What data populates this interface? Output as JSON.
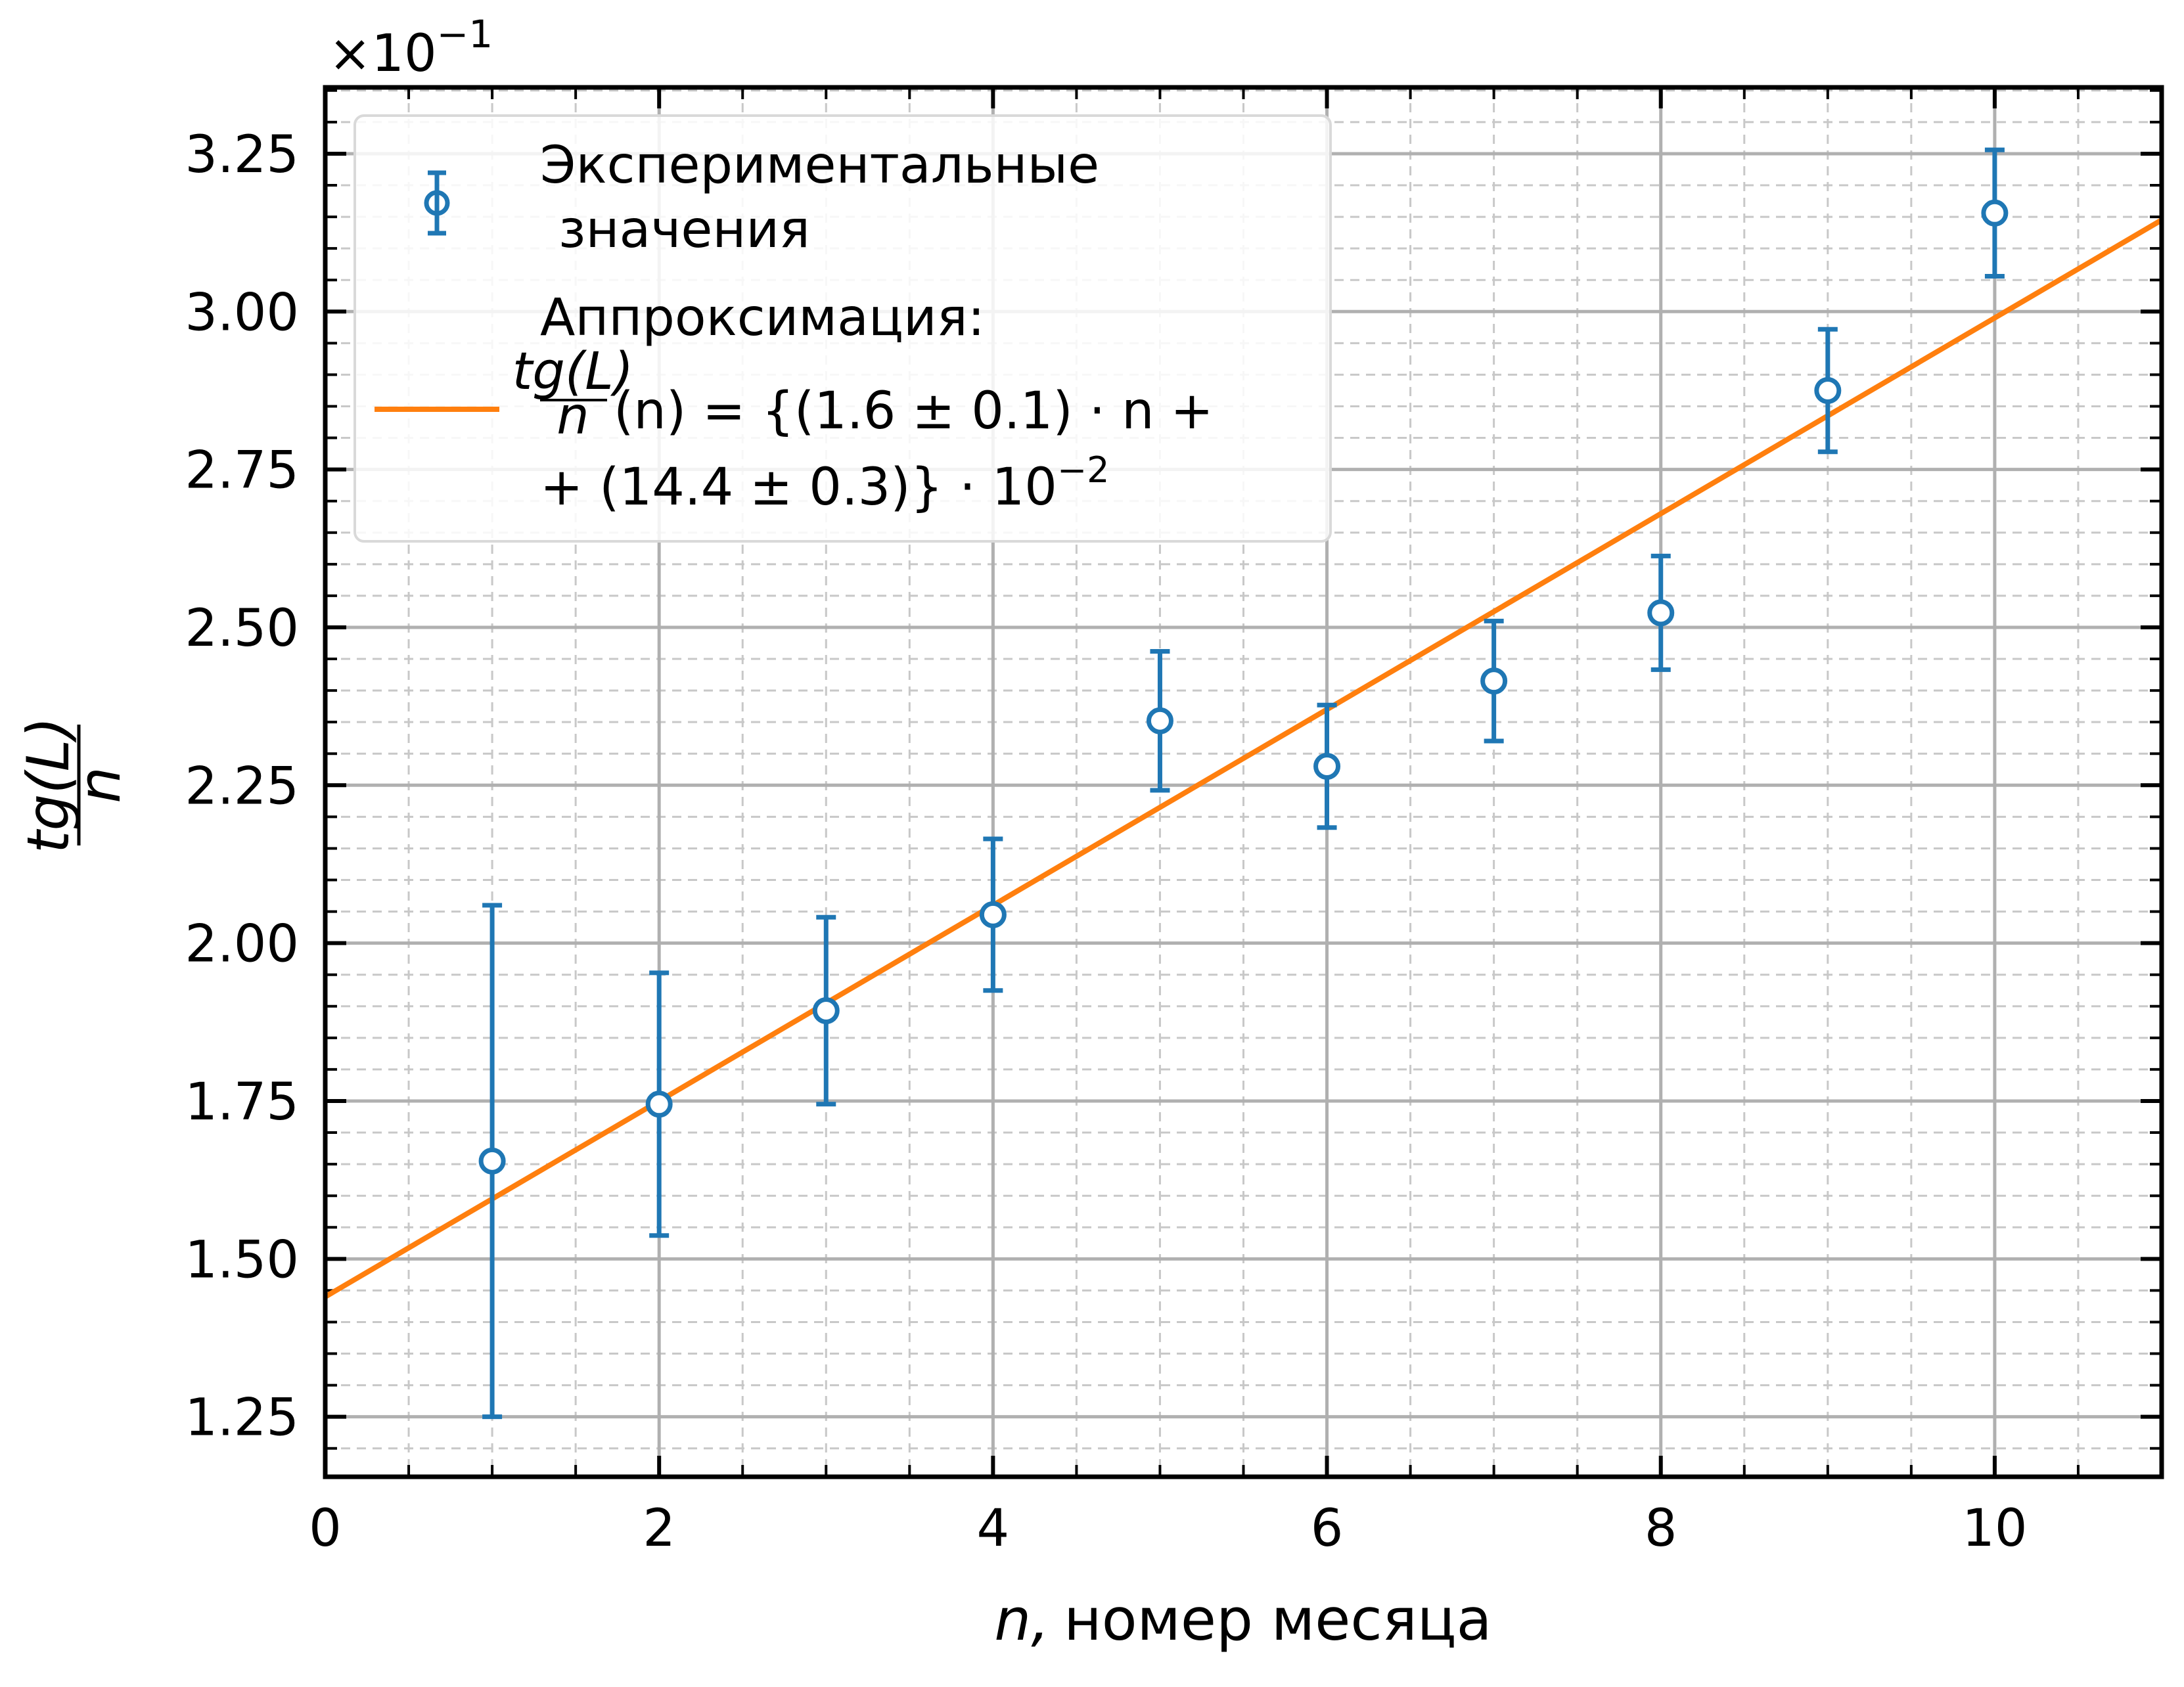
{
  "chart_data": {
    "type": "scatter",
    "xlabel_var": "n,",
    "xlabel_text": "номер месяца",
    "ylabel_num": "tg(L)",
    "ylabel_den": "n",
    "offset_text": "×10",
    "offset_exp": "−1",
    "xlim": [
      0,
      11
    ],
    "ylim": [
      1.155,
      3.355
    ],
    "x_major_ticks": [
      0,
      2,
      4,
      6,
      8,
      10
    ],
    "x_tick_labels": [
      "0",
      "2",
      "4",
      "6",
      "8",
      "10"
    ],
    "y_major_ticks": [
      1.25,
      1.5,
      1.75,
      2.0,
      2.25,
      2.5,
      2.75,
      3.0,
      3.25
    ],
    "y_tick_labels": [
      "1.25",
      "1.50",
      "1.75",
      "2.00",
      "2.25",
      "2.50",
      "2.75",
      "3.00",
      "3.25"
    ],
    "grid": true,
    "legend_position": "upper-left",
    "series": [
      {
        "name": "Экспериментальные значения",
        "kind": "errorbar",
        "color": "#1f77b4",
        "x": [
          1,
          2,
          3,
          4,
          5,
          6,
          7,
          8,
          9,
          10
        ],
        "y": [
          1.655,
          1.745,
          1.893,
          2.045,
          2.352,
          2.28,
          2.415,
          2.523,
          2.875,
          3.156
        ],
        "yerr": [
          0.405,
          0.208,
          0.148,
          0.12,
          0.11,
          0.097,
          0.095,
          0.09,
          0.097,
          0.1
        ]
      },
      {
        "name": "Аппроксимация",
        "kind": "line",
        "color": "#ff7f0e",
        "slope": 0.155,
        "intercept": 1.44
      }
    ],
    "legend": {
      "entry1_line1": "Экспериментальные",
      "entry1_line2": "значения",
      "entry2_line1": "Аппроксимация:",
      "entry2_frac_num": "tg(L)",
      "entry2_frac_den": "n",
      "entry2_eq_rest": "(n) = {(1.6 ± 0.1) · n  +",
      "entry2_line3": "+ (14.4 ± 0.3)} · 10",
      "entry2_line3_exp": "−2"
    }
  }
}
